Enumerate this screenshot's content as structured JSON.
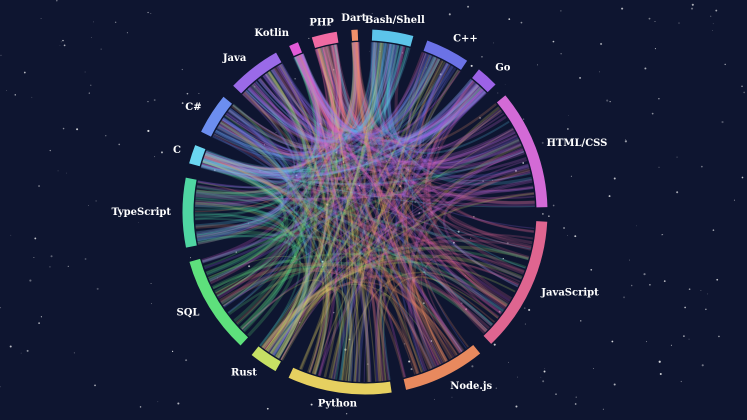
{
  "chart_data": {
    "type": "chord",
    "categories": [
      "Bash/Shell",
      "C++",
      "Go",
      "HTML/CSS",
      "JavaScript",
      "Node.js",
      "Python",
      "Rust",
      "SQL",
      "TypeScript",
      "C",
      "C#",
      "Java",
      "Kotlin",
      "PHP",
      "Dart"
    ],
    "values": [
      13,
      14,
      7,
      38,
      43,
      26,
      33,
      9,
      31,
      22,
      6,
      13,
      17,
      3,
      8,
      2
    ],
    "colors": [
      "#5cc4ea",
      "#6b72e6",
      "#9c62e6",
      "#d36ad6",
      "#df6590",
      "#e8895e",
      "#e6d060",
      "#c6e064",
      "#5ee07c",
      "#4fd6a2",
      "#6ad6f2",
      "#6c8ef0",
      "#9a6ae8",
      "#e25ad8",
      "#f06aa2",
      "#f0906a"
    ]
  }
}
